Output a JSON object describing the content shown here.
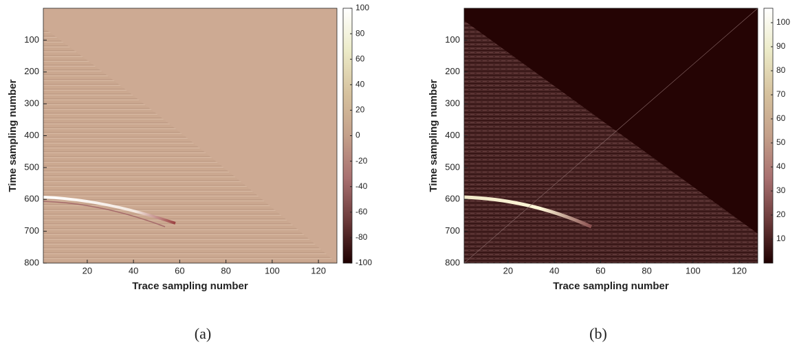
{
  "chart_data": [
    {
      "type": "heatmap",
      "xlabel": "Trace sampling number",
      "ylabel": "Time sampling number",
      "xlim": [
        1,
        128
      ],
      "xticks": [
        20,
        40,
        60,
        80,
        100,
        120
      ],
      "ylim": [
        0,
        800
      ],
      "yticks": [
        100,
        200,
        300,
        400,
        500,
        600,
        700,
        800
      ],
      "colorbar": {
        "lim": [
          -100,
          100
        ],
        "ticks": [
          100,
          80,
          60,
          40,
          20,
          0,
          -20,
          -40,
          -60,
          -80,
          -100
        ]
      },
      "colormap": [
        "#1e0000",
        "#6b3a3a",
        "#a87070",
        "#c4a08a",
        "#d6c29e",
        "#ecebc8",
        "#ffffff"
      ],
      "caption": "(a)"
    },
    {
      "type": "heatmap",
      "xlabel": "Trace sampling number",
      "ylabel": "Time sampling number",
      "xlim": [
        1,
        128
      ],
      "xticks": [
        20,
        40,
        60,
        80,
        100,
        120
      ],
      "ylim": [
        0,
        800
      ],
      "yticks": [
        100,
        200,
        300,
        400,
        500,
        600,
        700,
        800
      ],
      "colorbar": {
        "lim": [
          0,
          106
        ],
        "ticks": [
          100,
          90,
          80,
          70,
          60,
          50,
          40,
          30,
          20,
          10
        ]
      },
      "colormap": [
        "#1e0000",
        "#6b3a3a",
        "#a87070",
        "#c4a08a",
        "#d6c29e",
        "#ecebc8",
        "#ffffff"
      ],
      "caption": "(b)"
    }
  ]
}
